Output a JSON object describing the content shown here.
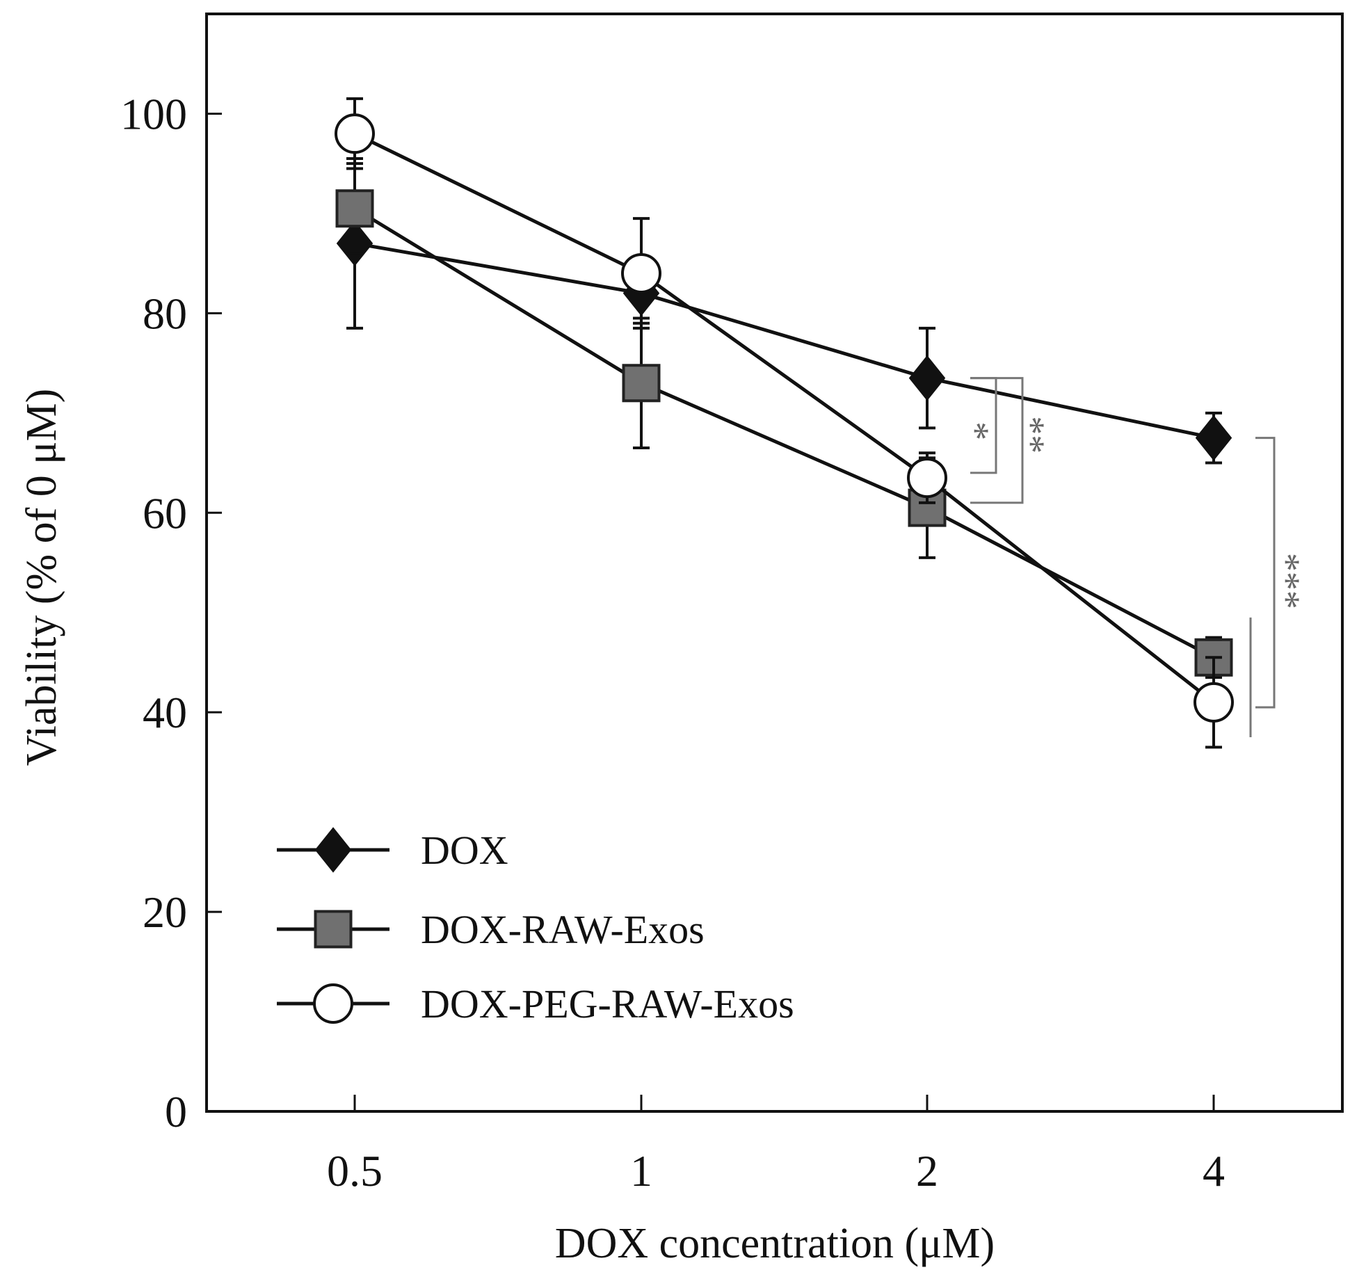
{
  "chart_data": {
    "type": "line",
    "title": "",
    "xlabel": "DOX concentration  (μM)",
    "ylabel": "Viability (% of 0 μM)",
    "categories": [
      "0.5",
      "1",
      "2",
      "4"
    ],
    "ylim": [
      0,
      110
    ],
    "yticks": [
      0,
      20,
      40,
      60,
      80,
      100
    ],
    "ytick_labels": [
      "0",
      "20",
      "40",
      "60",
      "80",
      "100"
    ],
    "grid": false,
    "legend_position": "bottom-left",
    "series": [
      {
        "name": "DOX",
        "marker": "diamond",
        "marker_color": "#111111",
        "values": [
          87,
          82,
          73.5,
          67.5
        ],
        "errors": [
          8.5,
          3,
          5,
          2.5
        ]
      },
      {
        "name": "DOX-RAW-Exos",
        "marker": "square",
        "marker_color": "#707070",
        "values": [
          90.5,
          73,
          60.5,
          45.5
        ],
        "errors": [
          4.5,
          6.5,
          5,
          2
        ]
      },
      {
        "name": "DOX-PEG-RAW-Exos",
        "marker": "circle",
        "marker_color": "#ffffff",
        "values": [
          98,
          84,
          63.5,
          41
        ],
        "errors": [
          3.5,
          5.5,
          2.5,
          4.5
        ]
      }
    ],
    "annotations": [
      {
        "text": "*",
        "between": [
          "DOX",
          "DOX-PEG-RAW-Exos"
        ],
        "at": "2",
        "y_range": [
          64,
          73.5
        ]
      },
      {
        "text": "**",
        "between": [
          "DOX",
          "DOX-RAW-Exos"
        ],
        "at": "2",
        "y_range": [
          61,
          73.5
        ]
      },
      {
        "text": "***",
        "between": [
          "DOX",
          "DOX-RAW-Exos / DOX-PEG-RAW-Exos"
        ],
        "at": "4",
        "y_range": [
          38,
          67.5
        ]
      }
    ]
  }
}
